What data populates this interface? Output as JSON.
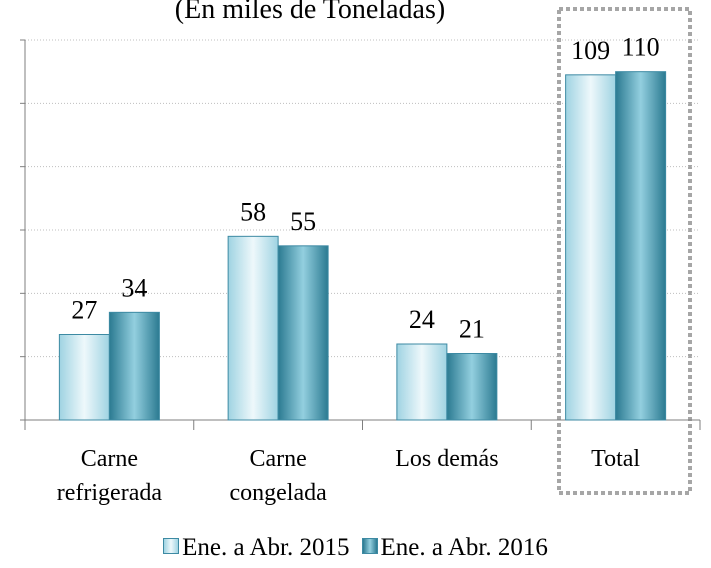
{
  "chart_data": {
    "type": "bar",
    "title": "(En miles de Toneladas)",
    "categories": [
      "Carne refrigerada",
      "Carne congelada",
      "Los demás",
      "Total"
    ],
    "series": [
      {
        "name": "Ene. a Abr. 2015",
        "color": "#bfe3ee",
        "values": [
          27,
          58,
          24,
          109
        ]
      },
      {
        "name": "Ene. a Abr. 2016",
        "color": "#4a9db5",
        "values": [
          34,
          55,
          21,
          110
        ]
      }
    ],
    "ylim": [
      0,
      120
    ],
    "yticks": [
      0,
      20,
      40,
      60,
      80,
      100,
      120
    ],
    "grid": true,
    "legend": "bottom"
  }
}
